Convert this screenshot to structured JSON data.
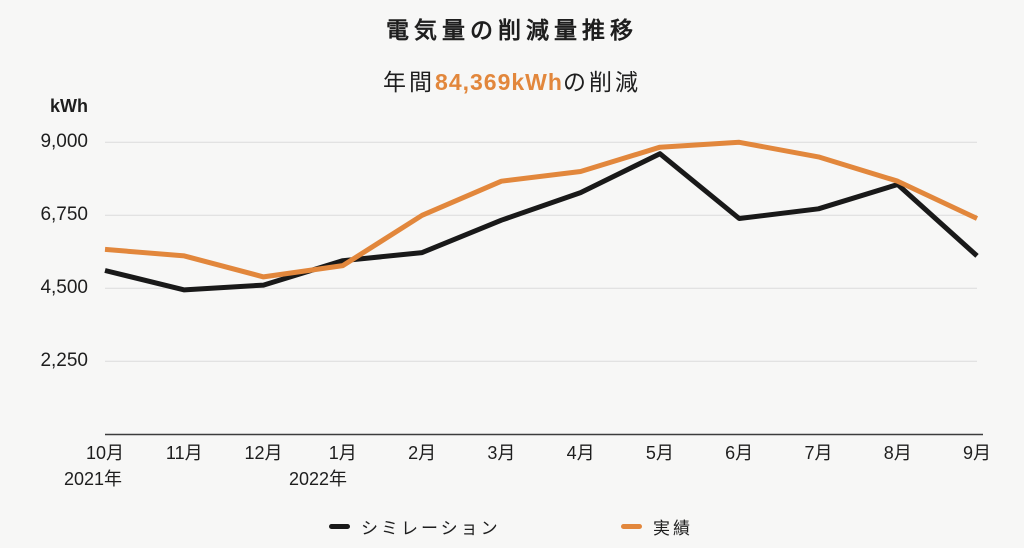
{
  "title": "電気量の削減量推移",
  "subtitle": {
    "prefix": "年間",
    "highlight": "84,369kWh",
    "suffix": "の削減"
  },
  "y_axis": {
    "unit": "kWh"
  },
  "colors": {
    "accent_orange": "#E2873C",
    "line_black": "#191919",
    "grid_line": "#DBDBDB",
    "axis_line": "#3C3C3C",
    "background": "#F7F7F6",
    "text": "#1E1E1E"
  },
  "chart_data": {
    "type": "line",
    "title": "電気量の削減量推移",
    "subtitle_text": "年間84,369kWhの削減",
    "unit": "kWh",
    "categories": [
      "10月",
      "11月",
      "12月",
      "1月",
      "2月",
      "3月",
      "4月",
      "5月",
      "6月",
      "7月",
      "8月",
      "9月"
    ],
    "x_year_labels": [
      {
        "text": "2021年",
        "under": "10月"
      },
      {
        "text": "2022年",
        "under": "1月"
      }
    ],
    "yticks": [
      {
        "value": 9000,
        "label": "9,000"
      },
      {
        "value": 6750,
        "label": "6,750"
      },
      {
        "value": 4500,
        "label": "4,500"
      },
      {
        "value": 2250,
        "label": "2,250"
      }
    ],
    "ylim": [
      0,
      9700
    ],
    "grid": true,
    "legend_position": "bottom",
    "series": [
      {
        "name": "シミレーション",
        "color": "#191919",
        "values": [
          5050,
          4450,
          4600,
          5350,
          5600,
          6600,
          7450,
          8650,
          6650,
          6950,
          7700,
          5500
        ]
      },
      {
        "name": "実績",
        "color": "#E2873C",
        "values": [
          5700,
          5500,
          4850,
          5200,
          6750,
          7800,
          8100,
          8850,
          9000,
          8550,
          7800,
          6650
        ]
      }
    ]
  }
}
